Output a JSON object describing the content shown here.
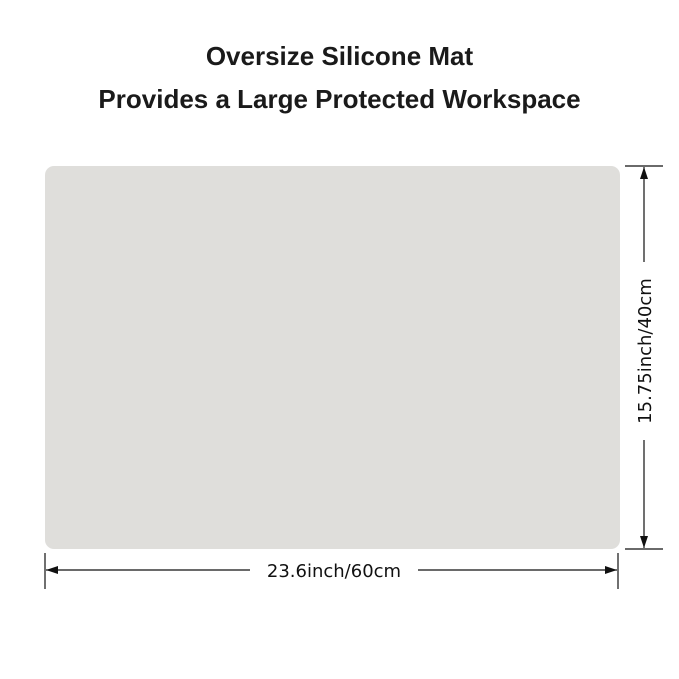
{
  "title": {
    "line1": "Oversize Silicone Mat",
    "line2": "Provides a Large Protected Workspace"
  },
  "mat": {
    "color": "#dfdedb"
  },
  "dimensions": {
    "width_label": "23.6inch/60cm",
    "height_label": "15.75inch/40cm"
  }
}
